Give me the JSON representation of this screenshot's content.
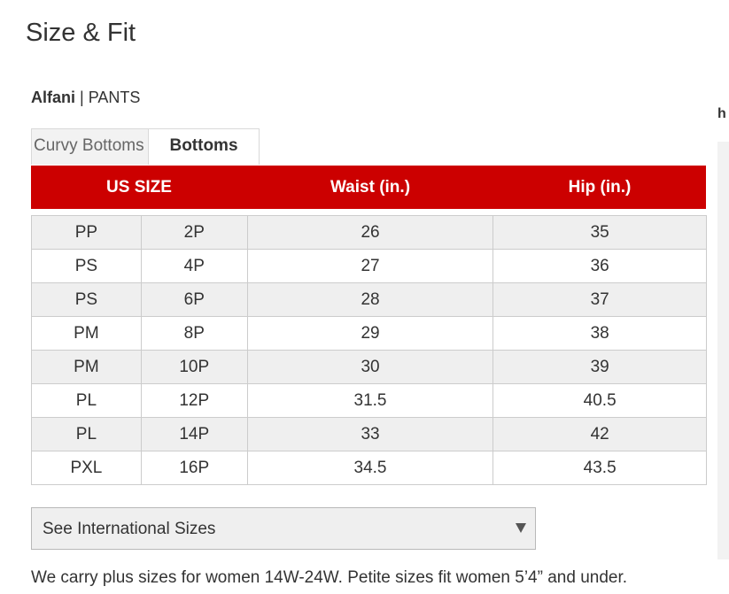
{
  "page": {
    "title": "Size & Fit",
    "side_heading": "h"
  },
  "product": {
    "brand": "Alfani",
    "separator": " | ",
    "category": "PANTS"
  },
  "tabs": [
    {
      "label": "Curvy Bottoms",
      "active": false
    },
    {
      "label": "Bottoms",
      "active": true
    }
  ],
  "table": {
    "headers": {
      "size": "US SIZE",
      "waist": "Waist (in.)",
      "hip": "Hip (in.)"
    },
    "rows": [
      {
        "alpha": "PP",
        "numeric": "2P",
        "waist": "26",
        "hip": "35"
      },
      {
        "alpha": "PS",
        "numeric": "4P",
        "waist": "27",
        "hip": "36"
      },
      {
        "alpha": "PS",
        "numeric": "6P",
        "waist": "28",
        "hip": "37"
      },
      {
        "alpha": "PM",
        "numeric": "8P",
        "waist": "29",
        "hip": "38"
      },
      {
        "alpha": "PM",
        "numeric": "10P",
        "waist": "30",
        "hip": "39"
      },
      {
        "alpha": "PL",
        "numeric": "12P",
        "waist": "31.5",
        "hip": "40.5"
      },
      {
        "alpha": "PL",
        "numeric": "14P",
        "waist": "33",
        "hip": "42"
      },
      {
        "alpha": "PXL",
        "numeric": "16P",
        "waist": "34.5",
        "hip": "43.5"
      }
    ]
  },
  "international_select": {
    "value": "See International Sizes",
    "icon": "caret-down-icon"
  },
  "footnote": "We carry plus sizes for women 14W-24W. Petite sizes fit women 5’4” and under.",
  "colors": {
    "header_red": "#cc0000",
    "row_shade": "#efefef"
  }
}
